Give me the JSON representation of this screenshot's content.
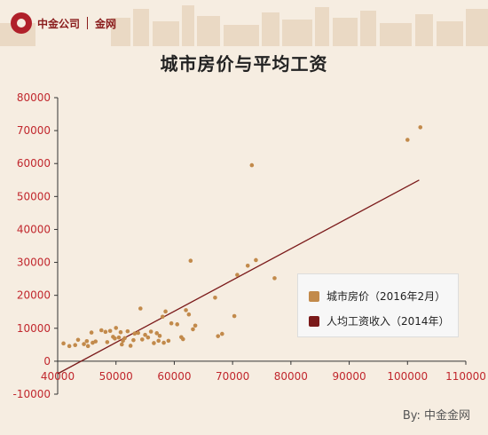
{
  "header": {
    "logo_company": "中金公司",
    "logo_site": "金网",
    "title": "城市房价与平均工资"
  },
  "watermark": "By: 中金金网",
  "colors": {
    "points": "#c28a4b",
    "trend": "#7b1a1a",
    "background": "#f6ede1"
  },
  "chart_data": {
    "type": "scatter",
    "title": "城市房价与平均工资",
    "xlim": [
      40000,
      110000
    ],
    "ylim": [
      -10000,
      80000
    ],
    "x_ticks": [
      40000,
      50000,
      60000,
      70000,
      80000,
      90000,
      100000,
      110000
    ],
    "y_ticks": [
      -10000,
      0,
      10000,
      20000,
      30000,
      40000,
      50000,
      60000,
      70000,
      80000
    ],
    "grid": false,
    "legend_position": "lower-right",
    "series": [
      {
        "name": "城市房价（2016年2月）",
        "color": "#c28a4b",
        "points": [
          [
            41000,
            5400
          ],
          [
            42000,
            4600
          ],
          [
            43000,
            4900
          ],
          [
            43500,
            6500
          ],
          [
            44500,
            5200
          ],
          [
            45000,
            6100
          ],
          [
            45200,
            4600
          ],
          [
            45800,
            8700
          ],
          [
            46000,
            5600
          ],
          [
            46500,
            6000
          ],
          [
            47500,
            9400
          ],
          [
            48200,
            8900
          ],
          [
            48500,
            5800
          ],
          [
            49000,
            9200
          ],
          [
            49500,
            7400
          ],
          [
            49800,
            6900
          ],
          [
            50000,
            10100
          ],
          [
            50500,
            7200
          ],
          [
            50800,
            8800
          ],
          [
            51000,
            5100
          ],
          [
            51200,
            6200
          ],
          [
            51500,
            7000
          ],
          [
            52000,
            9100
          ],
          [
            52500,
            4700
          ],
          [
            53000,
            6400
          ],
          [
            53200,
            8400
          ],
          [
            53800,
            8600
          ],
          [
            54200,
            16000
          ],
          [
            54500,
            6600
          ],
          [
            55000,
            8000
          ],
          [
            55500,
            7200
          ],
          [
            56000,
            9000
          ],
          [
            56500,
            5500
          ],
          [
            57000,
            8500
          ],
          [
            57300,
            6200
          ],
          [
            57500,
            7700
          ],
          [
            58000,
            13500
          ],
          [
            58200,
            5600
          ],
          [
            58500,
            15100
          ],
          [
            59000,
            6200
          ],
          [
            59500,
            11500
          ],
          [
            60500,
            11200
          ],
          [
            61200,
            7300
          ],
          [
            61500,
            6700
          ],
          [
            62000,
            15500
          ],
          [
            62500,
            14200
          ],
          [
            62800,
            30500
          ],
          [
            63200,
            9700
          ],
          [
            63600,
            10800
          ],
          [
            67000,
            19300
          ],
          [
            67500,
            7600
          ],
          [
            68200,
            8300
          ],
          [
            70300,
            13700
          ],
          [
            70800,
            26200
          ],
          [
            72600,
            29000
          ],
          [
            73300,
            59500
          ],
          [
            74000,
            30700
          ],
          [
            77200,
            25200
          ],
          [
            100000,
            67200
          ],
          [
            102200,
            71000
          ]
        ]
      },
      {
        "name": "人均工资收入（2014年）",
        "color": "#7b1a1a",
        "type": "line",
        "points": [
          [
            40000,
            -3800
          ],
          [
            102000,
            55000
          ]
        ]
      }
    ]
  }
}
